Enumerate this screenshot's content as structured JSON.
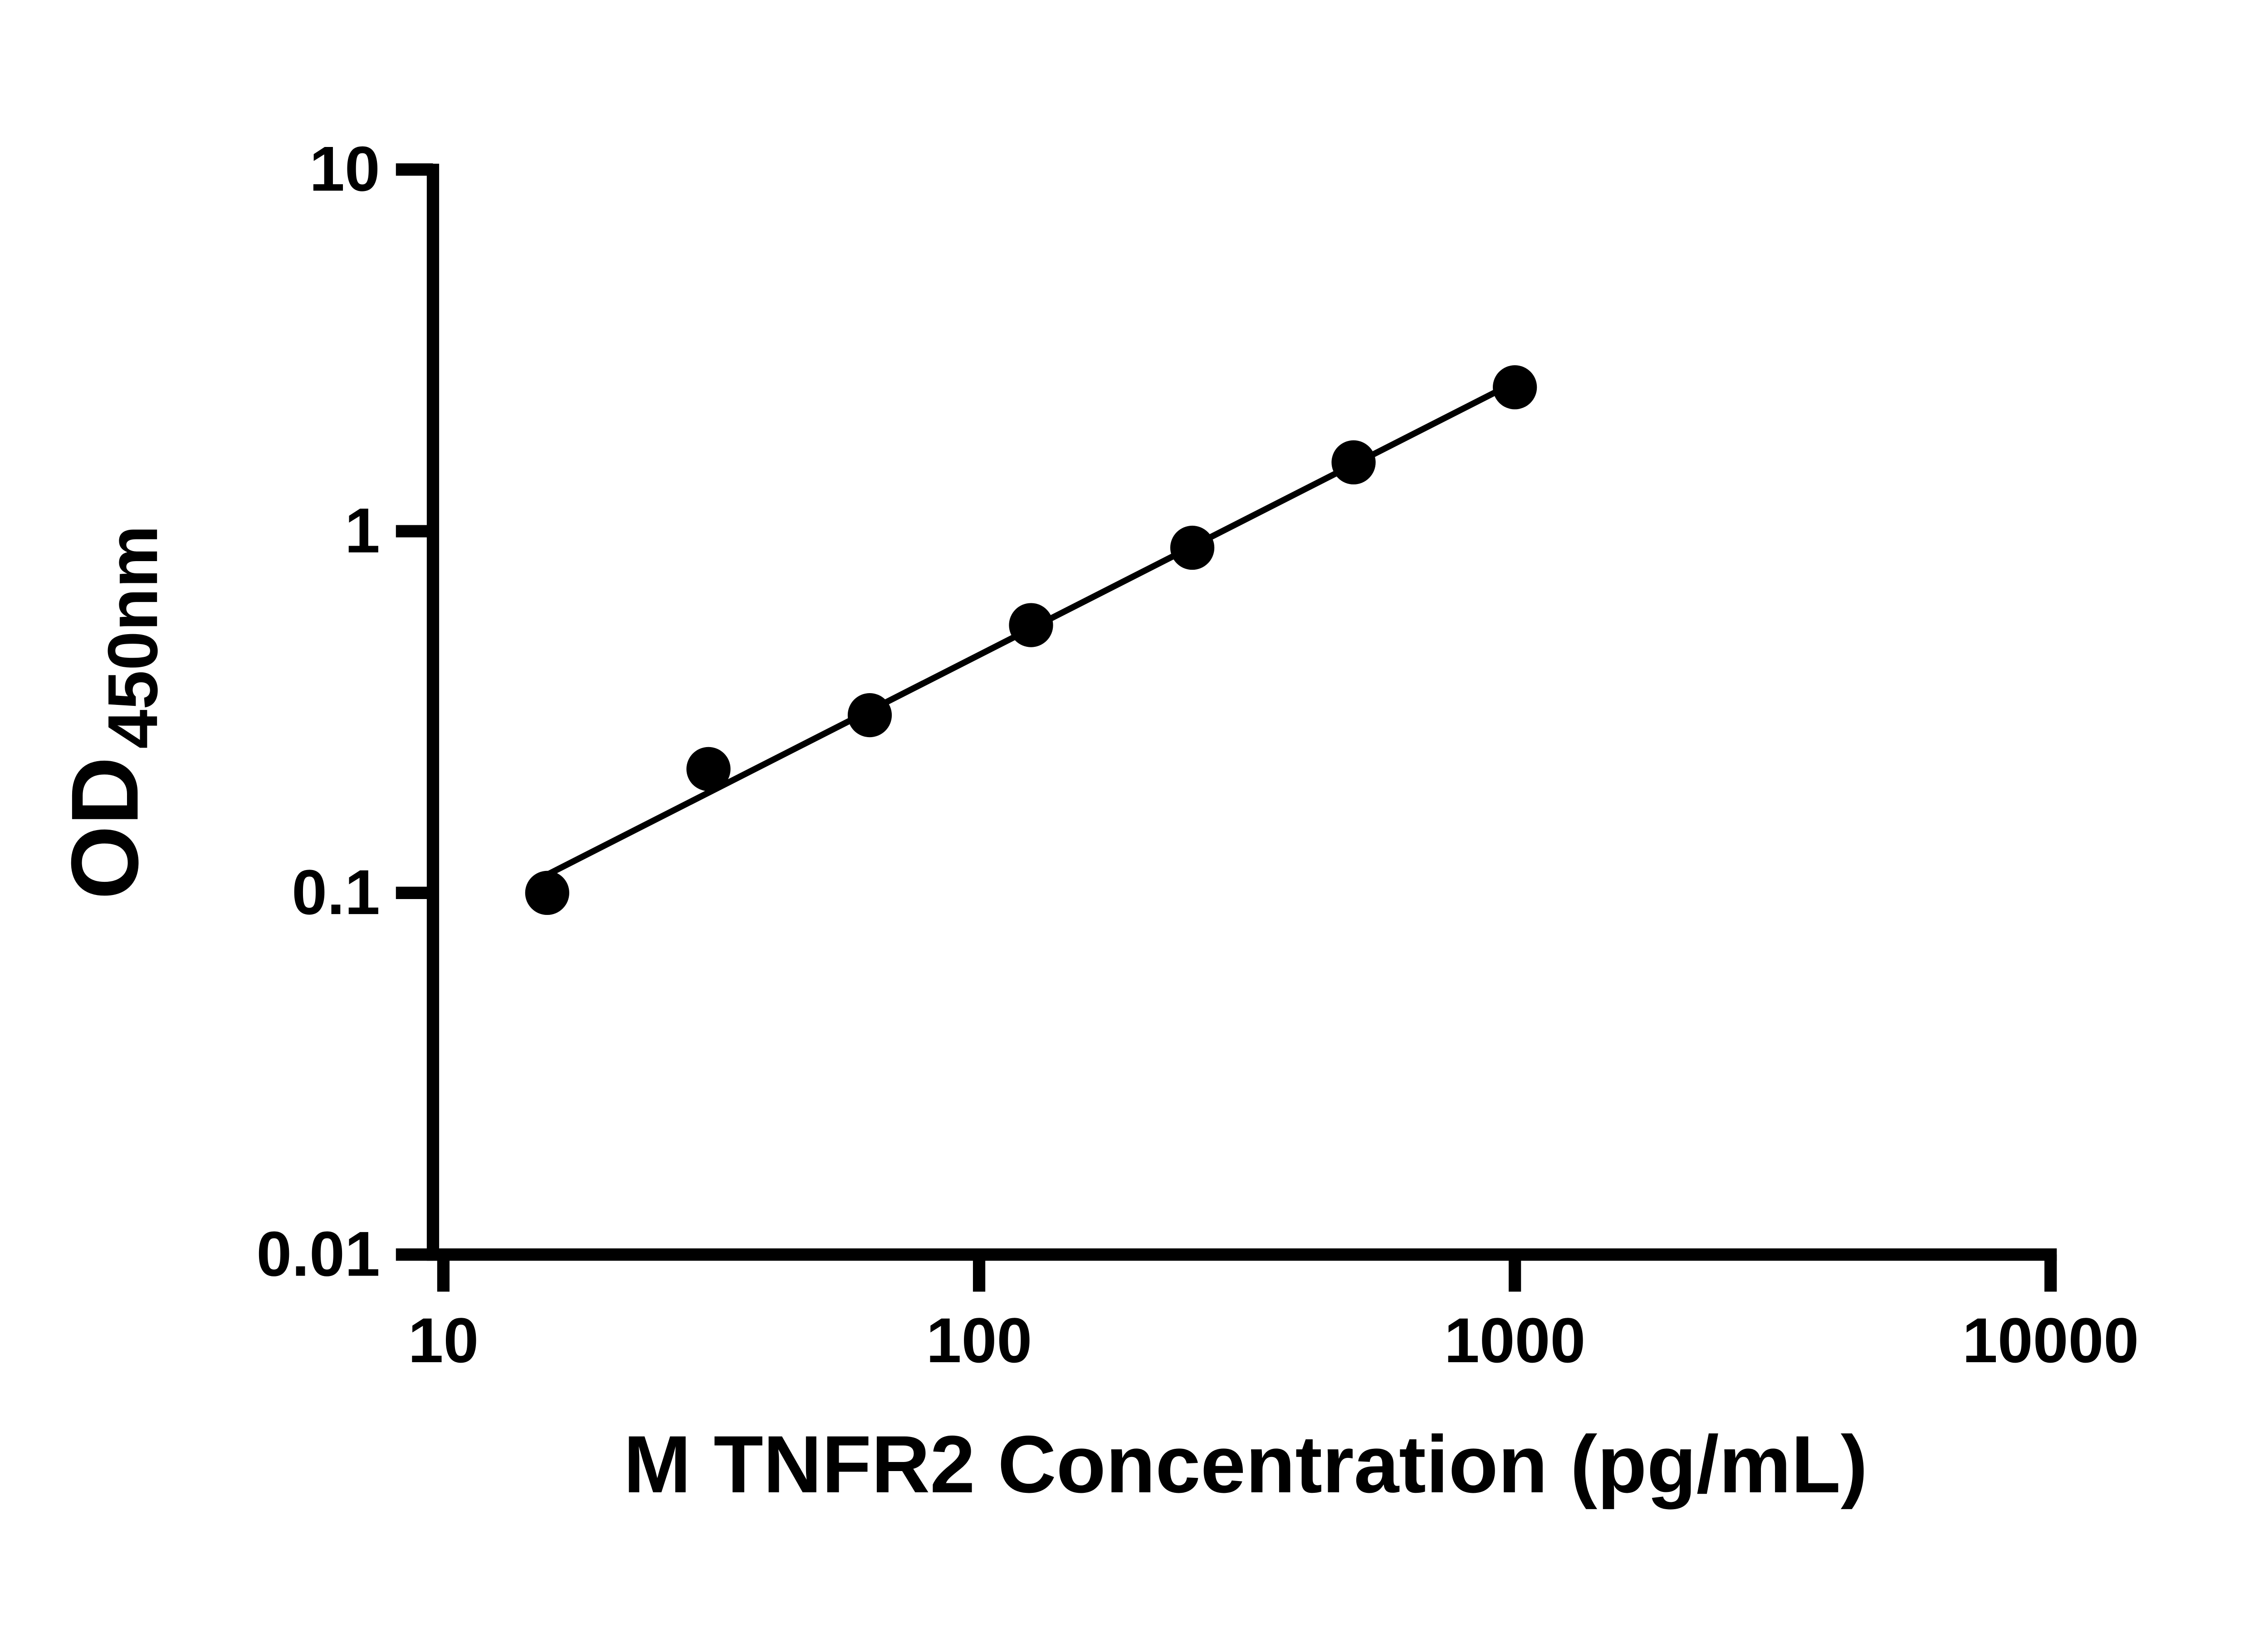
{
  "chart_data": {
    "type": "scatter",
    "title": "",
    "xlabel": "M TNFR2 Concentration (pg/mL)",
    "ylabel_main": "OD",
    "ylabel_sub": "450nm",
    "x_scale": "log",
    "y_scale": "log",
    "x": [
      15.625,
      31.25,
      62.5,
      125,
      250,
      500,
      1000
    ],
    "y": [
      0.1,
      0.22,
      0.31,
      0.55,
      0.9,
      1.55,
      2.5
    ],
    "x_ticks": [
      10,
      100,
      1000,
      10000
    ],
    "y_ticks": [
      10,
      1,
      0.1,
      0.01
    ],
    "xlim": [
      10,
      10000
    ],
    "ylim": [
      0.01,
      10
    ],
    "trendline": "linear-fit-loglog",
    "grid": false,
    "legend": false,
    "marker_color": "#000000",
    "line_color": "#000000",
    "axis_color": "#000000",
    "background": "#ffffff"
  }
}
